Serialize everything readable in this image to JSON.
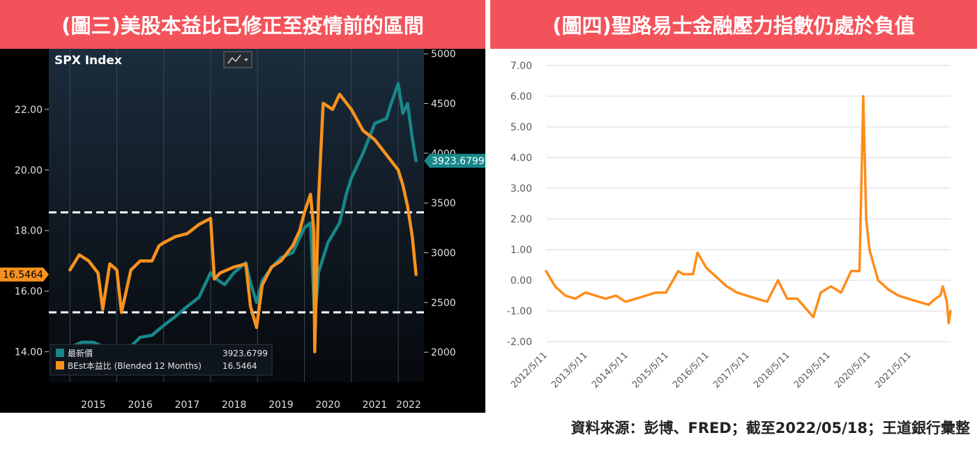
{
  "left_title": "(圖三)美股本益比已修正至疫情前的區間",
  "right_title": "(圖四)聖路易士金融壓力指數仍處於負值",
  "source_note": "資料來源：彭博、FRED；截至2022/05/18；王道銀行彙整",
  "colors": {
    "banner": "#f4525a",
    "teal": "#17878a",
    "orange": "#f7921e",
    "orange_right": "#ff8c1a"
  },
  "chart_data": [
    {
      "type": "line",
      "title": "SPX Index",
      "icon": "line-chart-icon",
      "x_ticks": [
        "2015",
        "2016",
        "2017",
        "2018",
        "2019",
        "2020",
        "2021",
        "2022"
      ],
      "y_left": {
        "range": [
          13.0,
          24.0
        ],
        "ticks": [
          "14.00",
          "16.00",
          "18.00",
          "20.00",
          "22.00"
        ]
      },
      "y_right": {
        "range": [
          1700,
          5050
        ],
        "ticks": [
          "2000",
          "2500",
          "3000",
          "3500",
          "4000",
          "4500",
          "5000"
        ]
      },
      "reference_lines": [
        18.6,
        15.3
      ],
      "last_value_labels": {
        "left": "16.5464",
        "right": "3923.6799"
      },
      "legend": {
        "position": "bottom-left",
        "items": [
          {
            "label": "最新價",
            "value": "3923.6799"
          },
          {
            "label": "BEst本益比 (Blended 12 Months)",
            "value": "16.5464"
          }
        ]
      },
      "series": [
        {
          "name": "最新價",
          "axis": "right",
          "x": [
            2015.0,
            2015.25,
            2015.5,
            2015.75,
            2016.0,
            2016.1,
            2016.3,
            2016.5,
            2016.75,
            2016.9,
            2017.0,
            2017.25,
            2017.5,
            2017.75,
            2018.0,
            2018.08,
            2018.3,
            2018.5,
            2018.75,
            2018.85,
            2018.98,
            2019.1,
            2019.3,
            2019.5,
            2019.75,
            2019.9,
            2020.0,
            2020.13,
            2020.22,
            2020.3,
            2020.5,
            2020.75,
            2020.9,
            2021.0,
            2021.25,
            2021.5,
            2021.75,
            2021.85,
            2022.0,
            2022.1,
            2022.2,
            2022.3,
            2022.38
          ],
          "y": [
            2050,
            2100,
            2100,
            2050,
            2040,
            1900,
            2060,
            2150,
            2170,
            2230,
            2270,
            2360,
            2460,
            2550,
            2800,
            2750,
            2680,
            2800,
            2900,
            2700,
            2500,
            2720,
            2850,
            2950,
            3000,
            3150,
            3250,
            3300,
            2300,
            2800,
            3100,
            3300,
            3600,
            3750,
            4000,
            4300,
            4350,
            4500,
            4700,
            4400,
            4500,
            4150,
            3924
          ]
        },
        {
          "name": "BEst本益比 (Blended 12 Months)",
          "axis": "left",
          "x": [
            2015.0,
            2015.2,
            2015.4,
            2015.6,
            2015.7,
            2015.85,
            2016.0,
            2016.1,
            2016.3,
            2016.5,
            2016.75,
            2016.9,
            2017.0,
            2017.25,
            2017.5,
            2017.75,
            2018.0,
            2018.08,
            2018.2,
            2018.5,
            2018.75,
            2018.85,
            2018.98,
            2019.1,
            2019.3,
            2019.5,
            2019.75,
            2019.9,
            2020.0,
            2020.13,
            2020.2,
            2020.22,
            2020.3,
            2020.4,
            2020.6,
            2020.75,
            2021.0,
            2021.25,
            2021.5,
            2021.75,
            2022.0,
            2022.1,
            2022.2,
            2022.3,
            2022.38
          ],
          "y": [
            16.7,
            17.2,
            17.0,
            16.6,
            15.4,
            16.9,
            16.7,
            15.3,
            16.7,
            17.0,
            17.0,
            17.5,
            17.6,
            17.8,
            17.9,
            18.2,
            18.4,
            16.4,
            16.6,
            16.8,
            16.9,
            15.5,
            14.8,
            16.2,
            16.8,
            17.0,
            17.5,
            18.0,
            18.6,
            19.2,
            18.0,
            14.0,
            19.0,
            22.2,
            22.0,
            22.5,
            22.0,
            21.3,
            21.0,
            20.5,
            20.0,
            19.5,
            18.8,
            17.8,
            16.55
          ]
        }
      ]
    },
    {
      "type": "line",
      "title": "",
      "x_ticks": [
        "2012/5/11",
        "2013/5/11",
        "2014/5/11",
        "2015/5/11",
        "2016/5/11",
        "2017/5/11",
        "2018/5/11",
        "2019/5/11",
        "2020/5/11",
        "2021/5/11"
      ],
      "y": {
        "range": [
          -2.0,
          7.0
        ],
        "ticks": [
          "-2.00",
          "-1.00",
          "0.00",
          "1.00",
          "2.00",
          "3.00",
          "4.00",
          "5.00",
          "6.00",
          "7.00"
        ]
      },
      "grid": true,
      "series": [
        {
          "name": "",
          "x": [
            "2012-05-11",
            "2012-08-01",
            "2012-11-01",
            "2013-02-01",
            "2013-05-01",
            "2013-08-01",
            "2013-11-01",
            "2014-02-01",
            "2014-05-01",
            "2014-08-01",
            "2014-11-01",
            "2015-02-01",
            "2015-05-01",
            "2015-08-20",
            "2015-10-01",
            "2016-01-01",
            "2016-02-10",
            "2016-05-01",
            "2016-08-01",
            "2016-11-01",
            "2017-02-01",
            "2017-05-01",
            "2017-08-01",
            "2017-11-01",
            "2018-02-08",
            "2018-05-01",
            "2018-08-01",
            "2018-12-24",
            "2019-03-01",
            "2019-06-01",
            "2019-09-01",
            "2019-12-01",
            "2020-02-15",
            "2020-03-20",
            "2020-04-15",
            "2020-05-15",
            "2020-08-01",
            "2020-11-01",
            "2021-02-01",
            "2021-05-01",
            "2021-08-01",
            "2021-11-01",
            "2022-01-01",
            "2022-02-15",
            "2022-03-10",
            "2022-04-15",
            "2022-05-01",
            "2022-05-18"
          ],
          "y": [
            0.3,
            -0.2,
            -0.5,
            -0.6,
            -0.4,
            -0.5,
            -0.6,
            -0.5,
            -0.7,
            -0.6,
            -0.5,
            -0.4,
            -0.4,
            0.3,
            0.2,
            0.2,
            0.9,
            0.4,
            0.1,
            -0.2,
            -0.4,
            -0.5,
            -0.6,
            -0.7,
            0.0,
            -0.6,
            -0.6,
            -1.2,
            -0.4,
            -0.2,
            -0.4,
            0.3,
            0.3,
            6.0,
            2.0,
            1.0,
            0.0,
            -0.3,
            -0.5,
            -0.6,
            -0.7,
            -0.8,
            -0.6,
            -0.5,
            -0.2,
            -0.7,
            -1.4,
            -1.0
          ]
        }
      ]
    }
  ]
}
